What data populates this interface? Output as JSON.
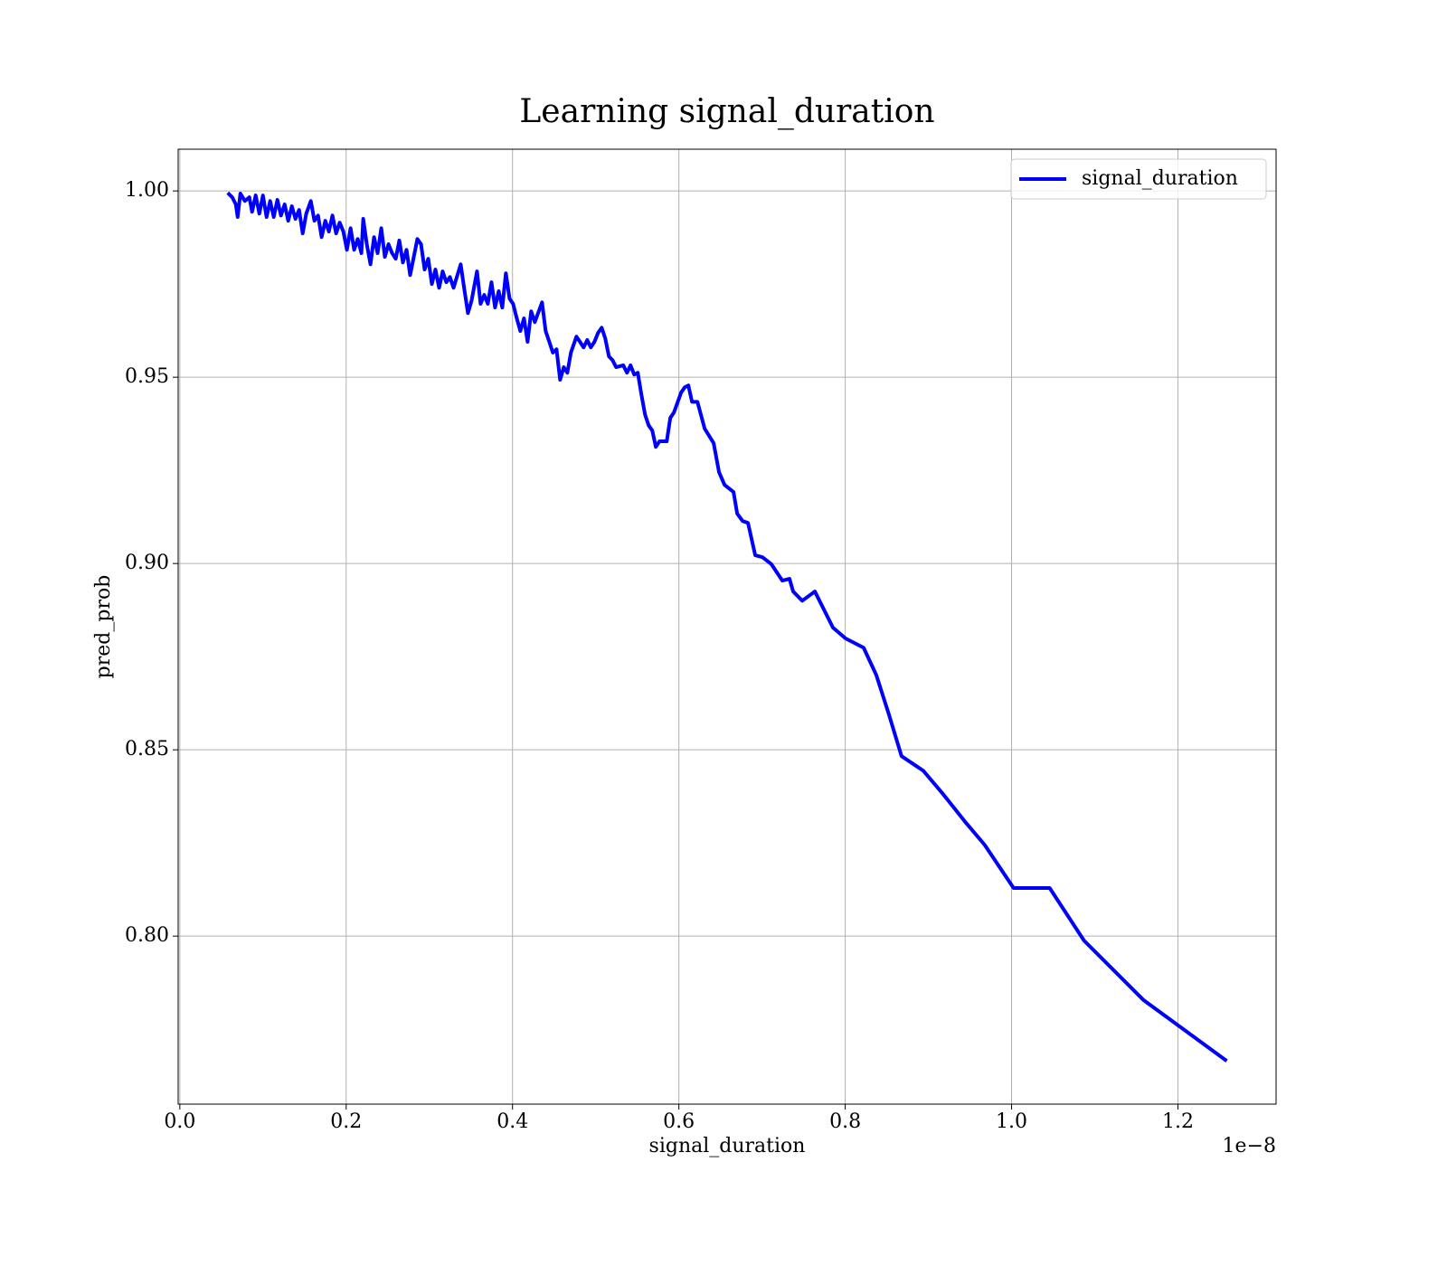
{
  "chart_data": {
    "type": "line",
    "title": "Learning signal_duration",
    "xlabel": "signal_duration",
    "ylabel": "pred_prob",
    "x_offset_label": "1e−8",
    "x": [
      0.0576,
      0.063,
      0.0673,
      0.0695,
      0.0728,
      0.0782,
      0.0836,
      0.0869,
      0.0912,
      0.0956,
      0.0999,
      0.1043,
      0.1086,
      0.1129,
      0.1173,
      0.1216,
      0.126,
      0.1303,
      0.1347,
      0.139,
      0.1434,
      0.1477,
      0.152,
      0.1575,
      0.1618,
      0.1662,
      0.1705,
      0.1749,
      0.1792,
      0.1835,
      0.1879,
      0.1922,
      0.1966,
      0.2009,
      0.2053,
      0.2096,
      0.2139,
      0.2183,
      0.2205,
      0.2248,
      0.2292,
      0.2335,
      0.2378,
      0.2422,
      0.2465,
      0.2509,
      0.2552,
      0.2596,
      0.2639,
      0.2682,
      0.2726,
      0.2769,
      0.2856,
      0.29,
      0.2943,
      0.2987,
      0.303,
      0.3073,
      0.3117,
      0.316,
      0.3204,
      0.3247,
      0.3291,
      0.3377,
      0.3421,
      0.3464,
      0.3508,
      0.3573,
      0.3616,
      0.366,
      0.3703,
      0.3747,
      0.379,
      0.3834,
      0.3877,
      0.392,
      0.3964,
      0.4007,
      0.4051,
      0.4094,
      0.4138,
      0.4181,
      0.4224,
      0.4268,
      0.4355,
      0.4398,
      0.4442,
      0.4485,
      0.4529,
      0.4572,
      0.4616,
      0.4659,
      0.4702,
      0.4768,
      0.4811,
      0.4854,
      0.4898,
      0.4941,
      0.4985,
      0.5028,
      0.5072,
      0.5115,
      0.5159,
      0.5202,
      0.5245,
      0.5332,
      0.5376,
      0.5419,
      0.5463,
      0.5506,
      0.5549,
      0.5593,
      0.5636,
      0.568,
      0.5723,
      0.5767,
      0.5854,
      0.5897,
      0.594,
      0.6027,
      0.6071,
      0.6114,
      0.6158,
      0.6223,
      0.631,
      0.6418,
      0.6483,
      0.6549,
      0.6657,
      0.6701,
      0.6766,
      0.6831,
      0.6918,
      0.7005,
      0.7113,
      0.7244,
      0.733,
      0.7374,
      0.7483,
      0.7635,
      0.7852,
      0.8004,
      0.8221,
      0.8373,
      0.8525,
      0.8677,
      0.8938,
      0.9177,
      0.9437,
      0.9676,
      1.0024,
      1.0458,
      1.0871,
      1.1588,
      1.2587
    ],
    "series": [
      {
        "name": "signal_duration",
        "color": "#0000ff",
        "values": [
          0.9995,
          0.9983,
          0.9964,
          0.993,
          0.9993,
          0.9973,
          0.9983,
          0.9944,
          0.9988,
          0.9939,
          0.9988,
          0.993,
          0.9973,
          0.993,
          0.9976,
          0.9934,
          0.9964,
          0.992,
          0.9959,
          0.9925,
          0.9949,
          0.9886,
          0.9939,
          0.9973,
          0.992,
          0.9934,
          0.9876,
          0.992,
          0.9891,
          0.9934,
          0.9886,
          0.9915,
          0.9891,
          0.9842,
          0.99,
          0.9842,
          0.9871,
          0.9833,
          0.9925,
          0.9857,
          0.9803,
          0.9876,
          0.9833,
          0.99,
          0.9823,
          0.9857,
          0.9833,
          0.9818,
          0.9867,
          0.9808,
          0.9842,
          0.9774,
          0.9871,
          0.9857,
          0.9789,
          0.9818,
          0.975,
          0.9789,
          0.974,
          0.9784,
          0.9755,
          0.9769,
          0.974,
          0.9803,
          0.9735,
          0.9672,
          0.9706,
          0.9784,
          0.9697,
          0.9721,
          0.9697,
          0.9755,
          0.9687,
          0.9731,
          0.9687,
          0.9779,
          0.9711,
          0.9697,
          0.9658,
          0.9624,
          0.9658,
          0.9595,
          0.9677,
          0.9648,
          0.9701,
          0.9624,
          0.9595,
          0.9566,
          0.9575,
          0.9493,
          0.9527,
          0.9512,
          0.9566,
          0.9609,
          0.9595,
          0.958,
          0.96,
          0.958,
          0.9595,
          0.9619,
          0.9633,
          0.9604,
          0.9556,
          0.9546,
          0.9527,
          0.9532,
          0.9512,
          0.9532,
          0.9507,
          0.9512,
          0.9454,
          0.94,
          0.9371,
          0.9357,
          0.9313,
          0.9328,
          0.9328,
          0.9391,
          0.9405,
          0.9459,
          0.9473,
          0.9478,
          0.9434,
          0.9434,
          0.9362,
          0.9323,
          0.9245,
          0.9211,
          0.9192,
          0.9134,
          0.9114,
          0.9109,
          0.9022,
          0.9017,
          0.8998,
          0.8954,
          0.8959,
          0.8925,
          0.89,
          0.8925,
          0.8828,
          0.8799,
          0.8774,
          0.8701,
          0.8595,
          0.8483,
          0.8444,
          0.8381,
          0.8308,
          0.8245,
          0.8129,
          0.8129,
          0.7988,
          0.7828,
          0.7665
        ]
      }
    ],
    "xlim": [
      -0.002,
      1.318
    ],
    "ylim": [
      0.7549,
      1.0112
    ],
    "xticks": [
      {
        "value": 0,
        "label": "0.0"
      },
      0.2,
      0.4,
      0.6,
      0.8,
      {
        "value": 1,
        "label": "1.0"
      },
      1.2
    ],
    "yticks": [
      {
        "value": 0.8,
        "label": "0.80"
      },
      0.85,
      {
        "value": 0.9,
        "label": "0.90"
      },
      0.95,
      {
        "value": 1,
        "label": "1.00"
      }
    ],
    "grid": true,
    "legend": "upper right"
  }
}
